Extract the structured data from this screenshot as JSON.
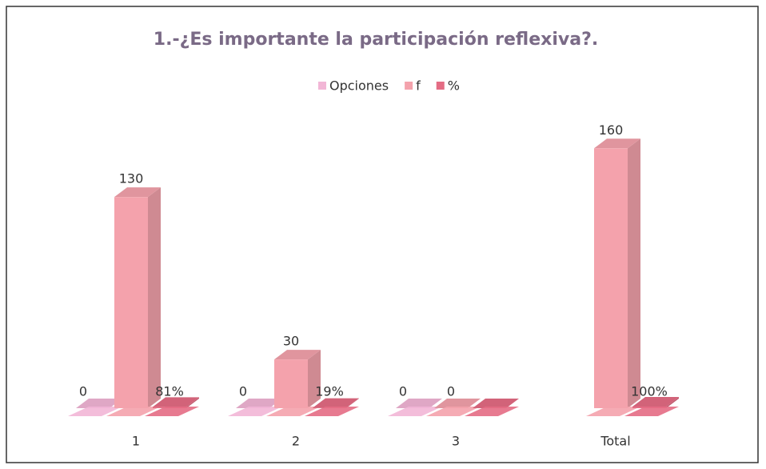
{
  "chart_data": {
    "type": "bar3d",
    "title": "1.-¿Es importante la participación reflexiva?.",
    "categories": [
      "1",
      "2",
      "3",
      "Total"
    ],
    "series": [
      {
        "name": "Opciones",
        "color": "#f2b6d6",
        "values": [
          0,
          0,
          0,
          null
        ]
      },
      {
        "name": "f",
        "color": "#f4a2ac",
        "values": [
          130,
          30,
          0,
          160
        ]
      },
      {
        "name": "%",
        "color": "#e46c84",
        "values": [
          0.81,
          0.19,
          0,
          1
        ],
        "value_labels": [
          "81%",
          "19%",
          null,
          "100%"
        ]
      }
    ],
    "ylim": [
      0,
      170
    ],
    "legend": "top"
  }
}
